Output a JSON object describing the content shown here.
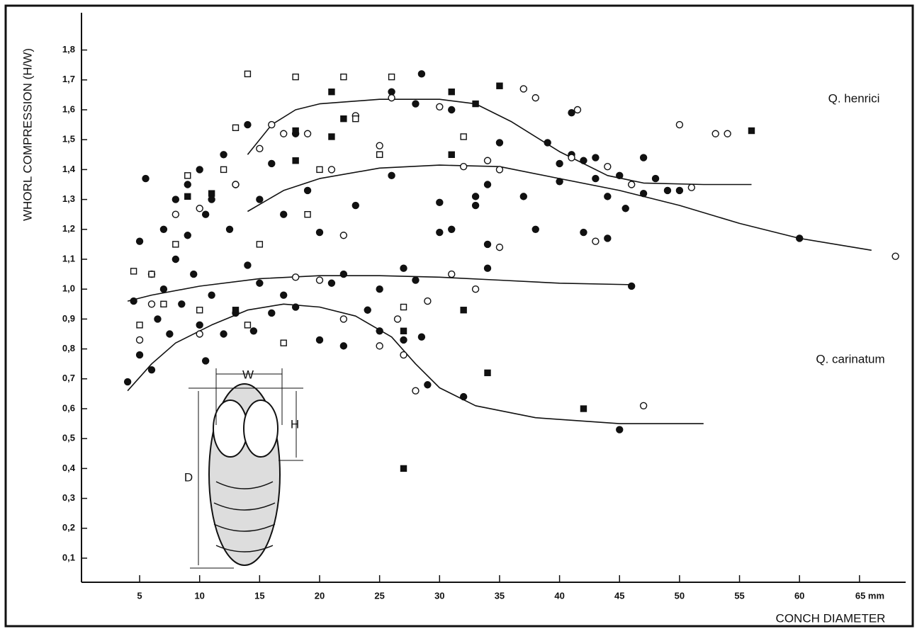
{
  "chart_data": {
    "type": "scatter",
    "x_label": "CONCH DIAMETER",
    "y_label": "WHORL COMPRESSION (H/W)",
    "xlim": [
      0,
      69
    ],
    "ylim": [
      0,
      1.9
    ],
    "xticks": [
      5,
      10,
      15,
      20,
      25,
      30,
      35,
      40,
      45,
      50,
      55,
      60,
      {
        "value": 65,
        "label": "65 mm"
      }
    ],
    "yticks": [
      {
        "value": 0.1,
        "label": "0,1"
      },
      {
        "value": 0.2,
        "label": "0,2"
      },
      {
        "value": 0.3,
        "label": "0,3"
      },
      {
        "value": 0.4,
        "label": "0,4"
      },
      {
        "value": 0.5,
        "label": "0,5"
      },
      {
        "value": 0.6,
        "label": "0,6"
      },
      {
        "value": 0.7,
        "label": "0,7"
      },
      {
        "value": 0.8,
        "label": "0,8"
      },
      {
        "value": 0.9,
        "label": "0,9"
      },
      {
        "value": 1.0,
        "label": "1,0"
      },
      {
        "value": 1.1,
        "label": "1,1"
      },
      {
        "value": 1.2,
        "label": "1,2"
      },
      {
        "value": 1.3,
        "label": "1,3"
      },
      {
        "value": 1.4,
        "label": "1,4"
      },
      {
        "value": 1.5,
        "label": "1,5"
      },
      {
        "value": 1.6,
        "label": "1,6"
      },
      {
        "value": 1.7,
        "label": "1,7"
      },
      {
        "value": 1.8,
        "label": "1,8"
      }
    ],
    "annotations": [
      "Q. henrici",
      "Q. carinatum",
      "W",
      "H",
      "D"
    ],
    "series": [
      {
        "type": "scatter",
        "marker": "circle",
        "filled": true,
        "color": "#111111",
        "x": [
          4,
          4.5,
          5,
          5,
          5.5,
          6,
          6,
          6.5,
          7,
          7,
          7.5,
          8,
          8,
          8.5,
          9,
          9,
          9.5,
          10,
          10,
          10.5,
          10.5,
          11,
          11,
          12,
          12,
          12.5,
          13,
          13,
          14,
          14,
          14.5,
          15,
          15,
          16,
          16,
          17,
          17,
          18,
          18,
          19,
          20,
          20,
          21,
          22,
          22,
          23,
          24,
          25,
          25,
          26,
          26,
          27,
          27,
          28,
          28,
          28.5,
          28.5,
          29,
          30,
          30,
          31,
          31,
          32,
          33,
          33,
          34,
          34,
          34,
          35,
          37,
          38,
          39,
          40,
          40,
          41,
          41,
          42,
          42,
          43,
          43,
          44,
          44,
          45,
          45,
          45.5,
          46,
          47,
          47,
          48,
          49,
          50,
          60
        ],
        "values": [
          0.69,
          0.96,
          1.16,
          0.78,
          1.37,
          0.73,
          1.05,
          0.9,
          1.0,
          1.2,
          0.85,
          1.1,
          1.3,
          0.95,
          1.35,
          1.18,
          1.05,
          1.4,
          0.88,
          1.25,
          0.76,
          1.3,
          0.98,
          1.45,
          0.85,
          1.2,
          1.35,
          0.92,
          1.55,
          1.08,
          0.86,
          1.3,
          1.02,
          1.42,
          0.92,
          1.25,
          0.98,
          1.52,
          0.94,
          1.33,
          1.19,
          0.83,
          1.02,
          0.81,
          1.05,
          1.28,
          0.93,
          0.86,
          1.0,
          1.66,
          1.38,
          1.07,
          0.83,
          1.62,
          1.03,
          1.72,
          0.84,
          0.68,
          1.29,
          1.19,
          1.2,
          1.6,
          0.64,
          1.31,
          1.28,
          1.35,
          1.15,
          1.07,
          1.49,
          1.31,
          1.2,
          1.49,
          1.42,
          1.36,
          1.45,
          1.59,
          1.19,
          1.43,
          1.37,
          1.44,
          1.31,
          1.17,
          1.38,
          0.53,
          1.27,
          1.01,
          1.32,
          1.44,
          1.37,
          1.33,
          1.33,
          1.17
        ]
      },
      {
        "type": "scatter",
        "marker": "circle",
        "filled": false,
        "color": "#111111",
        "x": [
          5,
          6,
          8,
          10,
          10,
          13,
          15,
          16,
          17,
          18,
          19,
          20,
          21,
          22,
          22,
          23,
          25,
          25,
          26,
          26.5,
          27,
          28,
          29,
          30,
          31,
          32,
          33,
          34,
          35,
          35,
          37,
          38,
          41,
          41.5,
          43,
          44,
          46,
          47,
          50,
          51,
          53,
          54,
          68
        ],
        "values": [
          0.83,
          0.95,
          1.25,
          0.85,
          1.27,
          1.35,
          1.47,
          1.55,
          1.52,
          1.04,
          1.52,
          1.03,
          1.4,
          0.9,
          1.18,
          1.58,
          1.48,
          0.81,
          1.64,
          0.9,
          0.78,
          0.66,
          0.96,
          1.61,
          1.05,
          1.41,
          1.0,
          1.43,
          1.14,
          1.4,
          1.67,
          1.64,
          1.44,
          1.6,
          1.16,
          1.41,
          1.35,
          0.61,
          1.55,
          1.34,
          1.52,
          1.52,
          1.11
        ]
      },
      {
        "type": "scatter",
        "marker": "square",
        "filled": true,
        "color": "#111111",
        "x": [
          9,
          11,
          13,
          18,
          18,
          21,
          21,
          22,
          25,
          27,
          27,
          31,
          31,
          32,
          33,
          34,
          35,
          42,
          56
        ],
        "values": [
          1.31,
          1.32,
          0.93,
          1.53,
          1.43,
          1.66,
          1.51,
          1.57,
          1.45,
          0.86,
          0.4,
          1.66,
          1.45,
          0.93,
          1.62,
          0.72,
          1.68,
          0.6,
          1.53
        ]
      },
      {
        "type": "scatter",
        "marker": "square",
        "filled": false,
        "color": "#111111",
        "x": [
          4.5,
          5,
          6,
          7,
          8,
          9,
          10,
          12,
          13,
          14,
          14,
          15,
          17,
          18,
          19,
          20,
          22,
          23,
          25,
          26,
          27,
          32
        ],
        "values": [
          1.06,
          0.88,
          1.05,
          0.95,
          1.15,
          1.38,
          0.93,
          1.4,
          1.54,
          1.72,
          0.88,
          1.15,
          0.82,
          1.71,
          1.25,
          1.4,
          1.71,
          1.57,
          1.45,
          1.71,
          0.94,
          1.51
        ]
      },
      {
        "type": "line",
        "color": "#111111",
        "x": [
          14,
          16,
          18,
          20,
          25,
          30,
          33,
          36,
          40,
          44,
          47,
          52,
          56
        ],
        "values": [
          1.45,
          1.55,
          1.6,
          1.62,
          1.635,
          1.635,
          1.62,
          1.56,
          1.46,
          1.38,
          1.355,
          1.35,
          1.35
        ]
      },
      {
        "type": "line",
        "color": "#111111",
        "x": [
          14,
          17,
          20,
          25,
          30,
          35,
          40,
          45,
          50,
          55,
          60,
          66
        ],
        "values": [
          1.26,
          1.33,
          1.37,
          1.405,
          1.415,
          1.41,
          1.37,
          1.33,
          1.28,
          1.22,
          1.17,
          1.13
        ]
      },
      {
        "type": "line",
        "color": "#111111",
        "x": [
          4,
          6,
          10,
          15,
          20,
          25,
          30,
          35,
          40,
          46
        ],
        "values": [
          0.96,
          0.98,
          1.01,
          1.035,
          1.045,
          1.045,
          1.04,
          1.03,
          1.02,
          1.015
        ]
      },
      {
        "type": "line",
        "color": "#111111",
        "x": [
          4,
          6,
          8,
          11,
          14,
          17,
          20,
          23,
          26,
          28,
          30,
          33,
          38,
          45,
          52
        ],
        "values": [
          0.66,
          0.75,
          0.82,
          0.88,
          0.93,
          0.95,
          0.94,
          0.91,
          0.84,
          0.75,
          0.67,
          0.61,
          0.57,
          0.55,
          0.55
        ]
      }
    ]
  }
}
